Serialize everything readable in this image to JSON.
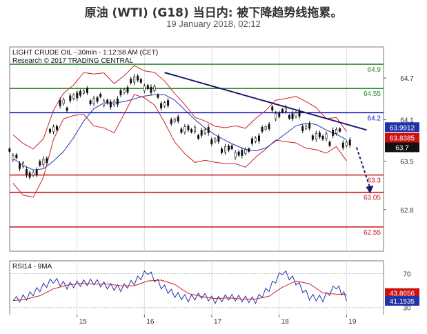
{
  "header": {
    "title": "原油 (WTI) (G18) 当日内: 被下降趋势线拖累。",
    "subtitle": "19 January 2018, 02:12"
  },
  "chart_data": [
    {
      "type": "line",
      "panel": "price",
      "source_line1": "LIGHT CRUDE OIL - 30min - 1:12:58 AM (CET)",
      "source_line2": "Research © 2017 TRADING CENTRAL",
      "x_tick_labels": [
        "15",
        "16",
        "17",
        "18",
        "19"
      ],
      "y_tick_labels": [
        "64.7",
        "64.1",
        "63.5",
        "62.8"
      ],
      "ylim": [
        62.2,
        65.15
      ],
      "levels": [
        {
          "value": 64.9,
          "label": "64.9",
          "color": "#2e8b2e"
        },
        {
          "value": 64.55,
          "label": "64.55",
          "color": "#2e8b2e"
        },
        {
          "value": 64.2,
          "label": "64.2",
          "color": "#1010cc"
        },
        {
          "value": 63.3,
          "label": "63.3",
          "color": "#cc1111"
        },
        {
          "value": 63.05,
          "label": "63.05",
          "color": "#cc1111"
        },
        {
          "value": 62.55,
          "label": "62.55",
          "color": "#cc1111"
        }
      ],
      "value_badges": [
        {
          "value": 63.9912,
          "label": "63.9912",
          "bg": "#2233aa"
        },
        {
          "value": 63.8385,
          "label": "63.8385",
          "bg": "#cc1111"
        },
        {
          "value": 63.7,
          "label": "63.7",
          "bg": "#111111"
        }
      ],
      "trendline": {
        "start": [
          16.3,
          64.78
        ],
        "end": [
          19.3,
          63.95
        ]
      },
      "projection": {
        "start": [
          19.15,
          63.7
        ],
        "end": [
          19.35,
          63.05
        ]
      },
      "series": [
        {
          "values_x": [
            14.05,
            14.2,
            14.35,
            14.5,
            14.65,
            14.8,
            14.95,
            15.1,
            15.25,
            15.4,
            15.55,
            15.7,
            15.85,
            16.0,
            16.15,
            16.3,
            16.45,
            16.6,
            16.75,
            16.9,
            17.05,
            17.2,
            17.35,
            17.5,
            17.65,
            17.8,
            17.95,
            18.1,
            18.25,
            18.4,
            18.55,
            18.7,
            18.85,
            19.0
          ],
          "values_y": [
            63.6,
            63.4,
            63.3,
            63.5,
            64.0,
            64.3,
            64.4,
            64.5,
            64.4,
            64.4,
            64.3,
            64.5,
            64.7,
            64.6,
            64.5,
            64.3,
            64.1,
            64.0,
            63.9,
            63.9,
            63.8,
            63.7,
            63.65,
            63.6,
            63.8,
            64.0,
            64.2,
            64.2,
            64.15,
            64.0,
            63.9,
            63.8,
            63.9,
            63.75
          ]
        }
      ]
    },
    {
      "type": "line",
      "panel": "rsi",
      "label": "RSI14 - 9MA",
      "y_tick_labels": [
        "70",
        "30"
      ],
      "ylim": [
        20,
        85
      ],
      "value_badges": [
        {
          "value": 43.8656,
          "label": "43.8656",
          "bg": "#cc1111"
        },
        {
          "value": 41.1535,
          "label": "41.1535",
          "bg": "#2233aa"
        }
      ],
      "series": [
        {
          "values_x": [
            14.05,
            14.25,
            14.45,
            14.65,
            14.85,
            15.05,
            15.25,
            15.45,
            15.65,
            15.85,
            16.05,
            16.25,
            16.45,
            16.65,
            16.85,
            17.05,
            17.25,
            17.45,
            17.65,
            17.85,
            18.05,
            18.25,
            18.45,
            18.65,
            18.85,
            19.0
          ],
          "values_y": [
            38,
            42,
            52,
            62,
            55,
            58,
            60,
            55,
            52,
            60,
            72,
            55,
            45,
            40,
            44,
            38,
            42,
            40,
            38,
            52,
            72,
            60,
            42,
            40,
            55,
            41
          ]
        }
      ]
    }
  ]
}
